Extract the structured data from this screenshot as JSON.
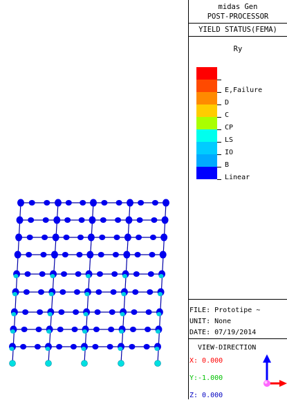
{
  "panel": {
    "program": "midas Gen",
    "mode": "POST-PROCESSOR",
    "result_type": "YIELD STATUS(FEMA)",
    "component": "Ry"
  },
  "legend": [
    {
      "label": "",
      "color": "#ff0000"
    },
    {
      "label": "E,Failure",
      "color": "#ff4a00"
    },
    {
      "label": "D",
      "color": "#ff8a00"
    },
    {
      "label": "C",
      "color": "#ffcc00"
    },
    {
      "label": "CP",
      "color": "#aaff00"
    },
    {
      "label": "LS",
      "color": "#00ffee"
    },
    {
      "label": "IO",
      "color": "#00ccff"
    },
    {
      "label": "B",
      "color": "#00aaff"
    },
    {
      "label": "Linear",
      "color": "#0000ff"
    }
  ],
  "info": {
    "file": "FILE: Prototipe ~",
    "unit": "UNIT: None",
    "date": "DATE: 07/19/2014",
    "view_direction": "VIEW-DIRECTION",
    "x": "X: 0.000",
    "y": "Y:-1.000",
    "z": "Z: 0.000"
  },
  "colors": {
    "frame": "#0000a8",
    "hinge_linear": "#0000ee",
    "hinge_io": "#00d0e0",
    "support": "#00e0e0",
    "x_color": "#ff0000",
    "y_color": "#00c000",
    "z_color": "#0000c0"
  }
}
